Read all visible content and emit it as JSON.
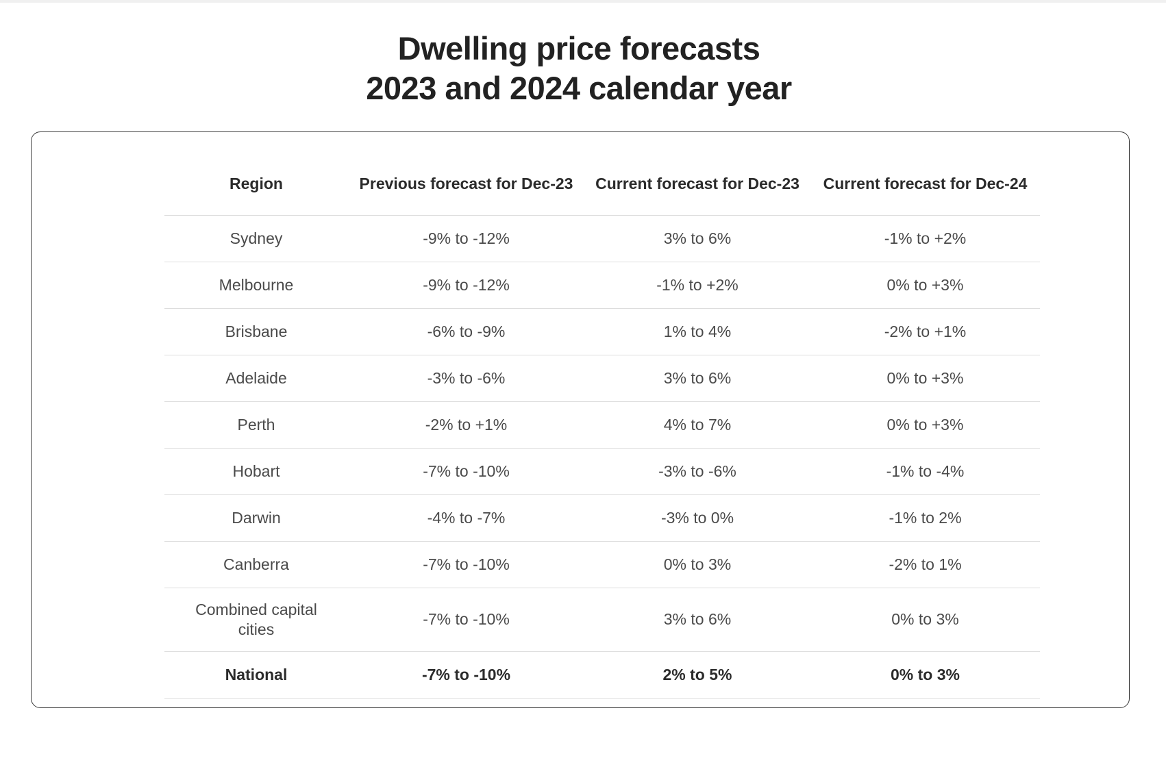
{
  "title": {
    "line1": "Dwelling price forecasts",
    "line2": "2023 and 2024 calendar year"
  },
  "table": {
    "headers": [
      "Region",
      "Previous forecast for Dec-23",
      "Current forecast for Dec-23",
      "Current forecast for Dec-24"
    ],
    "rows": [
      [
        "Sydney",
        "-9% to -12%",
        "3% to 6%",
        "-1% to +2%"
      ],
      [
        "Melbourne",
        "-9% to -12%",
        "-1% to +2%",
        "0% to +3%"
      ],
      [
        "Brisbane",
        "-6% to -9%",
        "1% to 4%",
        "-2% to +1%"
      ],
      [
        "Adelaide",
        "-3% to -6%",
        "3% to 6%",
        "0% to +3%"
      ],
      [
        "Perth",
        "-2% to +1%",
        "4% to 7%",
        "0% to +3%"
      ],
      [
        "Hobart",
        "-7% to -10%",
        "-3% to -6%",
        "-1% to -4%"
      ],
      [
        "Darwin",
        "-4% to -7%",
        "-3% to 0%",
        "-1% to 2%"
      ],
      [
        "Canberra",
        "-7% to -10%",
        "0% to 3%",
        "-2% to 1%"
      ],
      [
        "Combined capital cities",
        "-7% to -10%",
        "3% to 6%",
        "0% to 3%"
      ],
      [
        "National",
        "-7% to -10%",
        "2% to 5%",
        "0% to 3%"
      ]
    ]
  }
}
